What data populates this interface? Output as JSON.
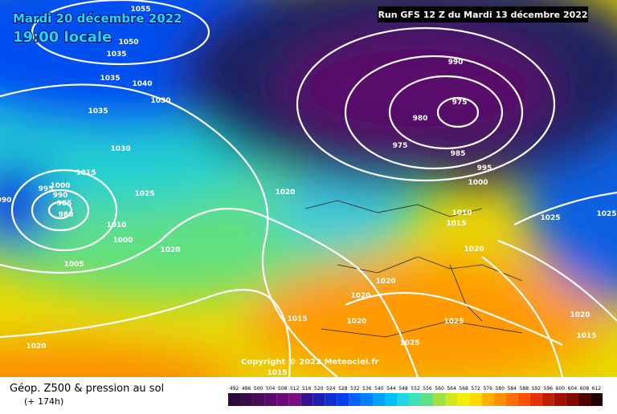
{
  "header": {
    "date": "Mardi 20 décembre 2022",
    "time": "19:00 locale",
    "run": "Run GFS 12 Z du Mardi 13 décembre 2022"
  },
  "copyright": "Copyright © 2022 Meteociel.fr",
  "footer": {
    "title": "Géop. Z500 & pression au sol",
    "lead": "(+ 174h)"
  },
  "isobar_labels": [
    "1055",
    "1050",
    "1035",
    "1035",
    "1040",
    "1030",
    "1035",
    "1030",
    "1025",
    "1020",
    "990",
    "975",
    "980",
    "975",
    "985",
    "995",
    "1000",
    "1015",
    "995",
    "1000",
    "990",
    "985",
    "980",
    "990",
    "1010",
    "1015",
    "1025",
    "1025",
    "1010",
    "1000",
    "1020",
    "1005",
    "1020",
    "1020",
    "1020",
    "1015",
    "1020",
    "1025",
    "1020",
    "1025",
    "1015",
    "1020",
    "1015"
  ],
  "legend": {
    "values": [
      492,
      496,
      500,
      504,
      508,
      512,
      516,
      520,
      524,
      528,
      532,
      536,
      540,
      544,
      548,
      552,
      556,
      560,
      564,
      568,
      572,
      576,
      580,
      584,
      588,
      592,
      596,
      600,
      604,
      608,
      612
    ],
    "colors": [
      "#2a0a3a",
      "#3a0a4a",
      "#4a0a5a",
      "#5a0a6a",
      "#6a0a7a",
      "#7a107f",
      "#3a1090",
      "#2020b0",
      "#1030d0",
      "#0040f0",
      "#0060ff",
      "#0080ff",
      "#00a0ff",
      "#00c0ff",
      "#20d8e0",
      "#40e0b0",
      "#60e080",
      "#a0e040",
      "#d0e820",
      "#f0f000",
      "#ffd800",
      "#ffb000",
      "#ff9000",
      "#ff7000",
      "#ff5000",
      "#e83000",
      "#c02000",
      "#a01000",
      "#800800",
      "#500000",
      "#200000"
    ]
  }
}
